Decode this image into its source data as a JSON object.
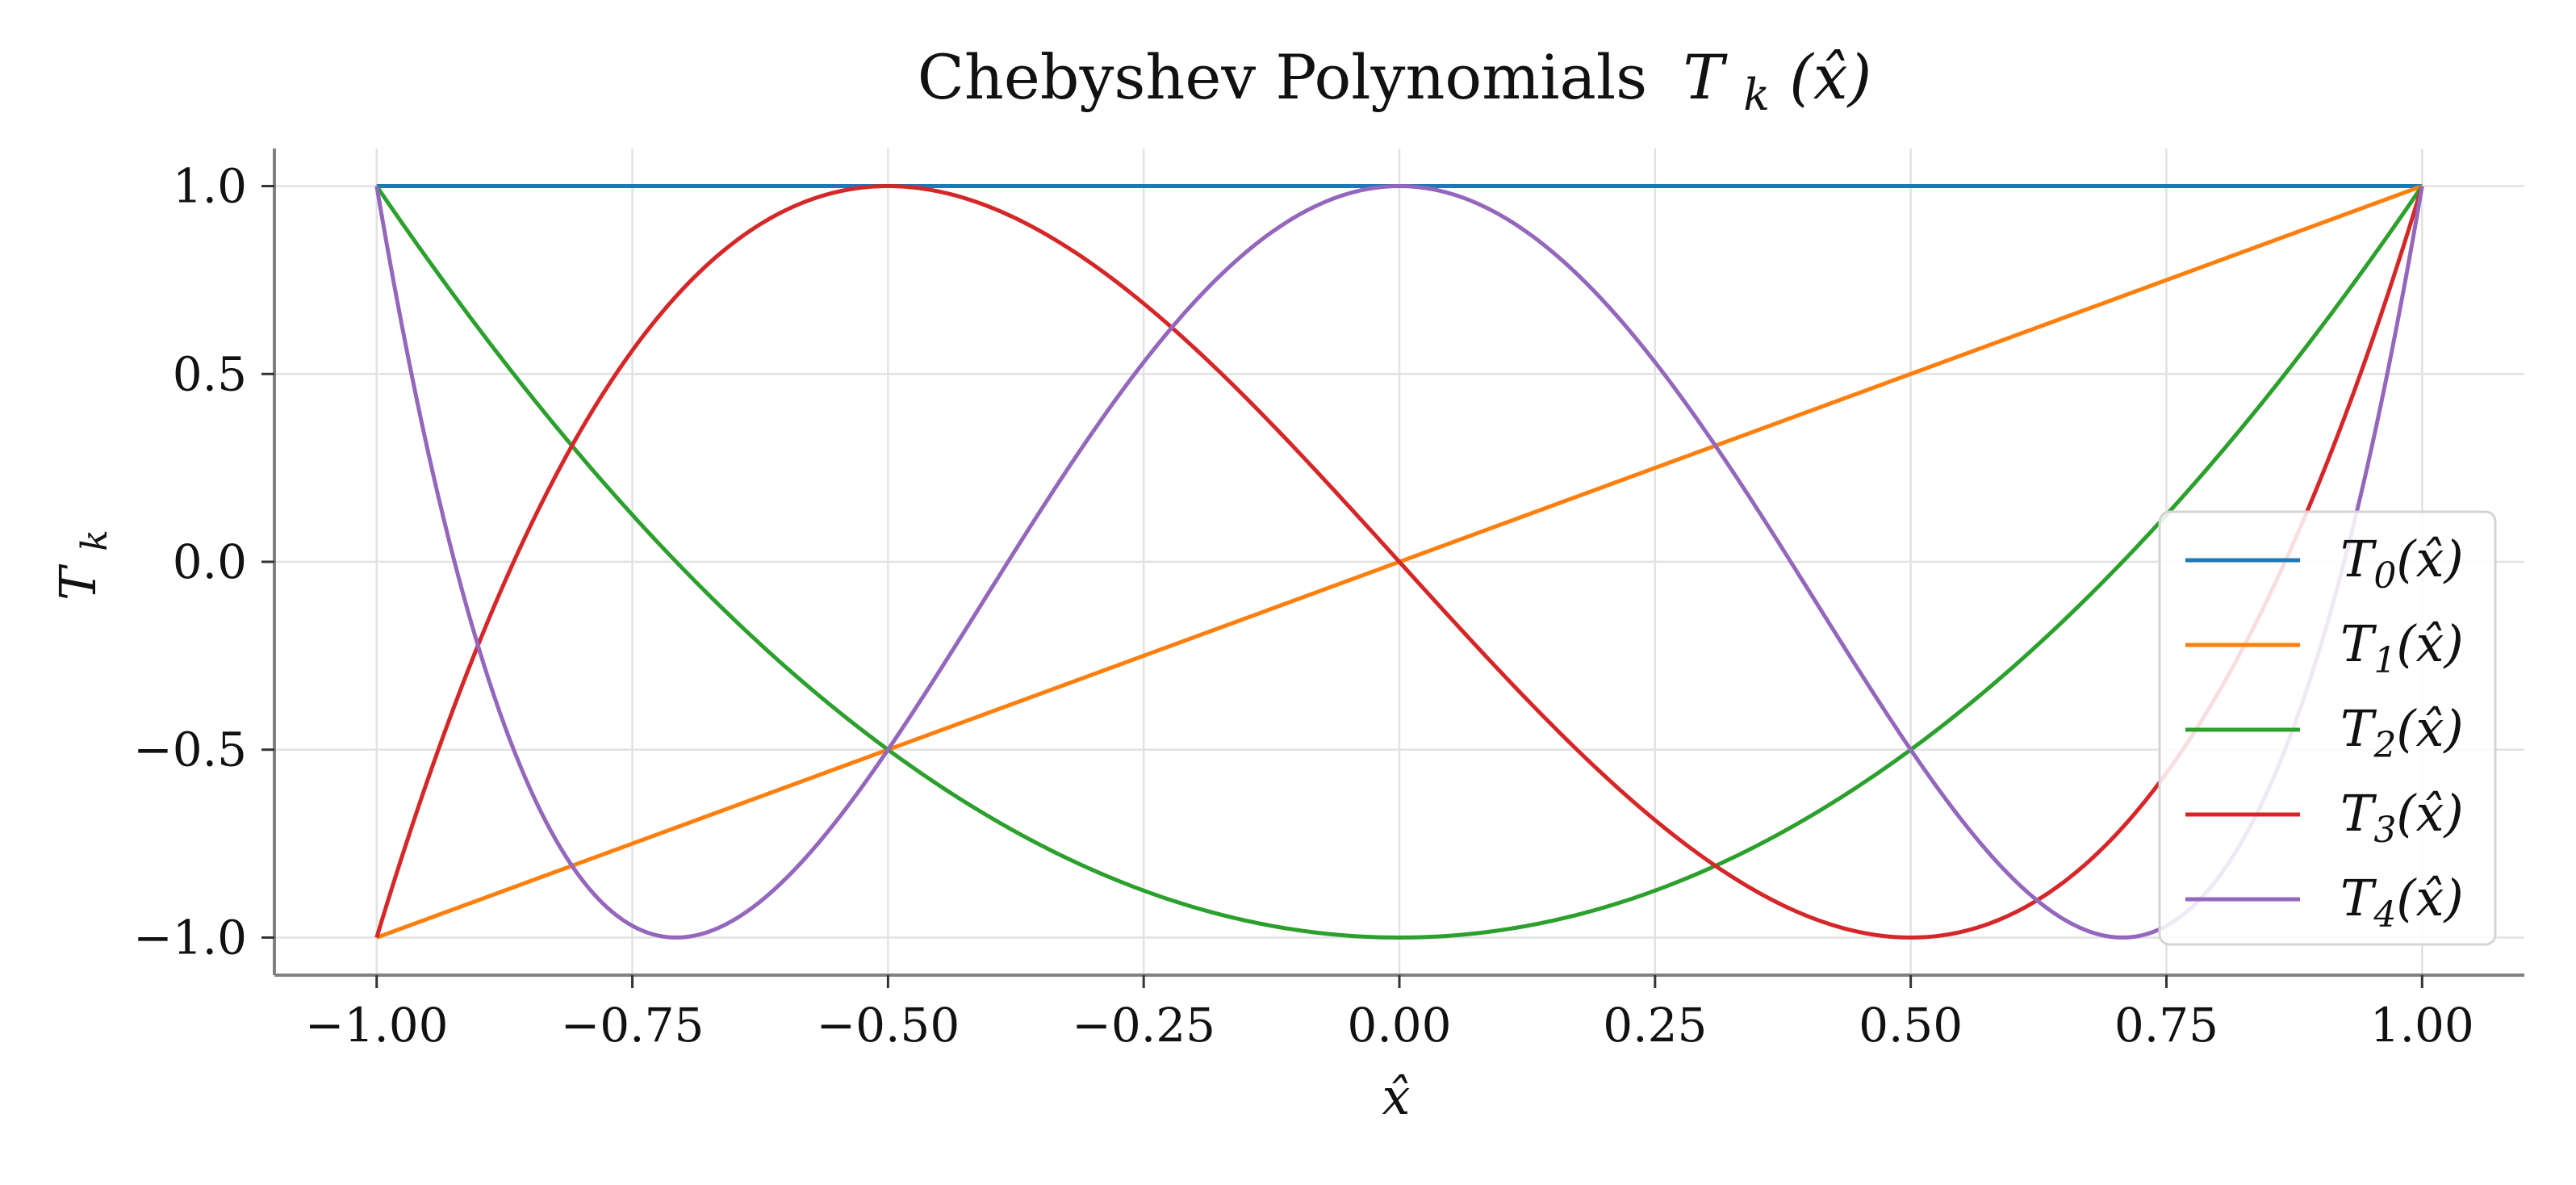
{
  "chart_data": {
    "type": "line",
    "title": "Chebyshev Polynomials",
    "title_math": {
      "base": "T",
      "sub": "k",
      "arg": "(x̂)"
    },
    "xlabel": "x̂",
    "ylabel": {
      "base": "T",
      "sub": "k"
    },
    "xlim": [
      -1.1,
      1.1
    ],
    "ylim": [
      -1.1,
      1.1
    ],
    "xticks": [
      -1.0,
      -0.75,
      -0.5,
      -0.25,
      0.0,
      0.25,
      0.5,
      0.75,
      1.0
    ],
    "xtick_labels": [
      "−1.00",
      "−0.75",
      "−0.50",
      "−0.25",
      "0.00",
      "0.25",
      "0.50",
      "0.75",
      "1.00"
    ],
    "yticks": [
      1.0,
      0.5,
      0.0,
      -0.5,
      -1.0
    ],
    "ytick_labels": [
      "1.0",
      "0.5",
      "0.0",
      "−0.5",
      "−1.0"
    ],
    "grid": true,
    "legend_position": "lower-right",
    "x_domain": [
      -1.0,
      1.0
    ],
    "series": [
      {
        "name": "T0(x̂)",
        "label_base": "T",
        "label_sub": "0",
        "label_arg": "(x̂)",
        "degree": 0,
        "color": "#1f77b4",
        "x": [
          -1,
          -0.75,
          -0.5,
          -0.25,
          0,
          0.25,
          0.5,
          0.75,
          1
        ],
        "y": [
          1,
          1,
          1,
          1,
          1,
          1,
          1,
          1,
          1
        ]
      },
      {
        "name": "T1(x̂)",
        "label_base": "T",
        "label_sub": "1",
        "label_arg": "(x̂)",
        "degree": 1,
        "color": "#ff7f0e",
        "x": [
          -1,
          -0.75,
          -0.5,
          -0.25,
          0,
          0.25,
          0.5,
          0.75,
          1
        ],
        "y": [
          -1,
          -0.75,
          -0.5,
          -0.25,
          0,
          0.25,
          0.5,
          0.75,
          1
        ]
      },
      {
        "name": "T2(x̂)",
        "label_base": "T",
        "label_sub": "2",
        "label_arg": "(x̂)",
        "degree": 2,
        "color": "#2ca02c",
        "x": [
          -1,
          -0.75,
          -0.5,
          -0.25,
          0,
          0.25,
          0.5,
          0.75,
          1
        ],
        "y": [
          1,
          0.125,
          -0.5,
          -0.875,
          -1,
          -0.875,
          -0.5,
          0.125,
          1
        ]
      },
      {
        "name": "T3(x̂)",
        "label_base": "T",
        "label_sub": "3",
        "label_arg": "(x̂)",
        "degree": 3,
        "color": "#d62728",
        "x": [
          -1,
          -0.75,
          -0.5,
          -0.25,
          0,
          0.25,
          0.5,
          0.75,
          1
        ],
        "y": [
          -1,
          0.5625,
          1,
          0.6875,
          0,
          -0.6875,
          -1,
          -0.5625,
          1
        ]
      },
      {
        "name": "T4(x̂)",
        "label_base": "T",
        "label_sub": "4",
        "label_arg": "(x̂)",
        "degree": 4,
        "color": "#9467bd",
        "x": [
          -1,
          -0.75,
          -0.5,
          -0.25,
          0,
          0.25,
          0.5,
          0.75,
          1
        ],
        "y": [
          1,
          -0.96875,
          -0.5,
          0.53125,
          1,
          0.53125,
          -0.5,
          -0.96875,
          1
        ]
      }
    ]
  }
}
